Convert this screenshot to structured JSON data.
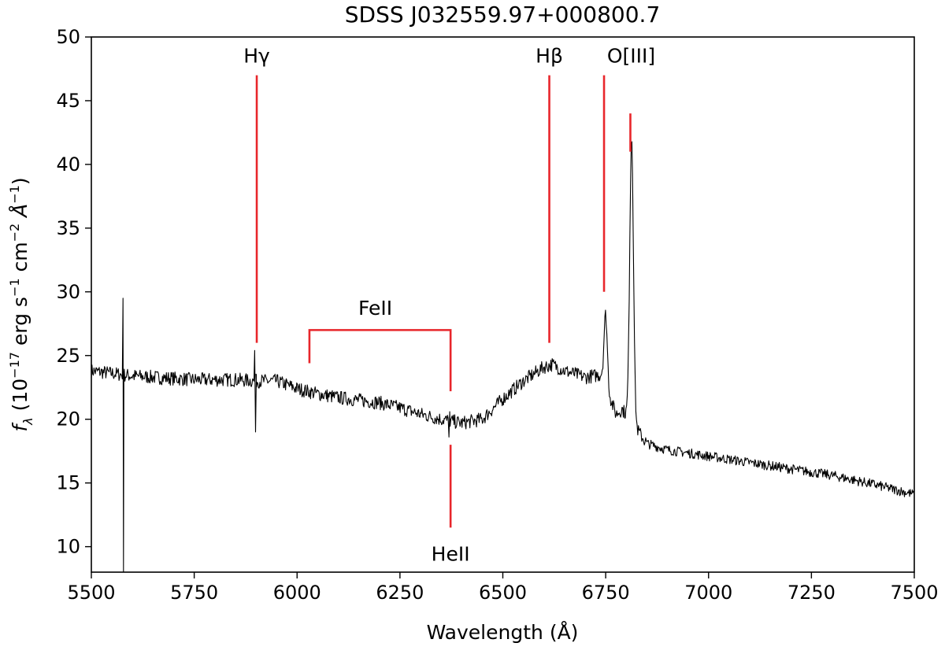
{
  "chart_data": {
    "type": "line",
    "title": "SDSS J032559.97+000800.7",
    "xlabel": "Wavelength (Å)",
    "ylabel": {
      "f": "f",
      "lambda": "λ",
      "open": " (10",
      "exp1": "−17",
      "erg": " erg s",
      "exp2": "−1",
      "cm": " cm",
      "exp3": "−2",
      "angstrom": " Å",
      "exp4": "−1",
      "close": ")"
    },
    "xlim": [
      5500,
      7500
    ],
    "ylim": [
      8,
      50
    ],
    "x_ticks": [
      5500,
      5750,
      6000,
      6250,
      6500,
      6750,
      7000,
      7250,
      7500
    ],
    "y_ticks": [
      10,
      15,
      20,
      25,
      30,
      35,
      40,
      45,
      50
    ],
    "grid": false,
    "colors": {
      "spectrum": "#000000",
      "markers": "#e8262b"
    },
    "series": [
      {
        "anchors": [
          [
            5500,
            23.8
          ],
          [
            5550,
            23.6
          ],
          [
            5600,
            23.4
          ],
          [
            5650,
            23.3
          ],
          [
            5700,
            23.2
          ],
          [
            5750,
            23.1
          ],
          [
            5800,
            23.1
          ],
          [
            5850,
            23.1
          ],
          [
            5900,
            23.0
          ],
          [
            5950,
            23.0
          ],
          [
            6000,
            22.4
          ],
          [
            6050,
            22.0
          ],
          [
            6100,
            21.7
          ],
          [
            6150,
            21.5
          ],
          [
            6200,
            21.3
          ],
          [
            6250,
            20.9
          ],
          [
            6300,
            20.4
          ],
          [
            6350,
            20.0
          ],
          [
            6400,
            19.7
          ],
          [
            6450,
            20.0
          ],
          [
            6500,
            21.6
          ],
          [
            6550,
            23.0
          ],
          [
            6600,
            24.1
          ],
          [
            6620,
            24.3
          ],
          [
            6650,
            23.8
          ],
          [
            6700,
            23.3
          ],
          [
            6740,
            23.5
          ],
          [
            6775,
            20.4
          ],
          [
            6790,
            20.8
          ],
          [
            6830,
            19.0
          ],
          [
            6850,
            18.1
          ],
          [
            6900,
            17.6
          ],
          [
            7000,
            17.1
          ],
          [
            7100,
            16.6
          ],
          [
            7200,
            16.1
          ],
          [
            7300,
            15.6
          ],
          [
            7400,
            14.9
          ],
          [
            7500,
            14.1
          ]
        ],
        "noise": 0.55,
        "features": [
          {
            "x": 5578,
            "type": "spike",
            "points": [
              [
                5577,
                29.5
              ],
              [
                5578,
                8
              ],
              [
                5579,
                23.6
              ]
            ]
          },
          {
            "x": 5898,
            "type": "spike",
            "points": [
              [
                5897,
                25.4
              ],
              [
                5899,
                19.0
              ],
              [
                5901,
                23.5
              ]
            ]
          },
          {
            "x": 6370,
            "type": "spike",
            "points": [
              [
                6369,
                18.6
              ],
              [
                6371,
                20.6
              ]
            ]
          },
          {
            "x": 6750,
            "type": "peak",
            "height": 28.2,
            "width": 4
          },
          {
            "x": 6813,
            "type": "peak",
            "height": 42.2,
            "width": 4.5
          }
        ]
      }
    ],
    "annotations": [
      {
        "type": "tick",
        "x": 5902,
        "y0": 26.0,
        "y1": 47.0,
        "label": "Hγ",
        "label_y": 48.0,
        "label_pos": "above"
      },
      {
        "type": "tick",
        "x": 6613,
        "y0": 26.0,
        "y1": 47.0,
        "label": "Hβ",
        "label_y": 48.0,
        "label_pos": "above"
      },
      {
        "type": "tick",
        "x": 6746,
        "y0": 30.0,
        "y1": 47.0,
        "label": "",
        "label_pos": "none"
      },
      {
        "type": "tick",
        "x": 6810,
        "y0": 41.0,
        "y1": 44.0,
        "label": "O[III]",
        "label_x": 6812,
        "label_y": 48.0,
        "label_pos": "above"
      },
      {
        "type": "tick",
        "x": 6373,
        "y0": 11.5,
        "y1": 18.0,
        "label": "HeII",
        "label_y": 10.0,
        "label_pos": "below"
      },
      {
        "type": "bracket",
        "x0": 6030,
        "x1": 6373,
        "y": 27.0,
        "y_end": 22.2,
        "label": "FeII",
        "label_x": 6190,
        "label_y": 28.2
      }
    ]
  }
}
